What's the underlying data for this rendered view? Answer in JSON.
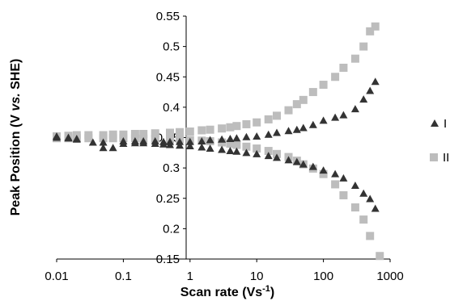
{
  "chart_data": {
    "type": "scatter",
    "xlabel_main": "Scan rate (Vs",
    "xlabel_sup": "-1",
    "xlabel_end": ")",
    "ylabel_pre": "Peak Position (V ",
    "ylabel_it": "vs.",
    "ylabel_post": " SHE)",
    "x_scale": "log",
    "xlim": [
      0.01,
      1000
    ],
    "ylim": [
      0.15,
      0.55
    ],
    "y_ticks": [
      "0.15",
      "0.2",
      "0.25",
      "0.3",
      "0.35",
      "0.4",
      "0.45",
      "0.5",
      "0.55"
    ],
    "x_ticks": [
      "0.01",
      "0.1",
      "1",
      "10",
      "100",
      "1000"
    ],
    "y_tick_values": [
      0.15,
      0.2,
      0.25,
      0.3,
      0.35,
      0.4,
      0.45,
      0.5,
      0.55
    ],
    "x_tick_values": [
      0.01,
      0.1,
      1,
      10,
      100,
      1000
    ],
    "grid": false,
    "legend_position": "right",
    "series": [
      {
        "name": "I",
        "marker": "triangle",
        "color": "#333333",
        "upper": {
          "x": [
            0.01,
            0.015,
            0.02,
            0.035,
            0.05,
            0.1,
            0.15,
            0.2,
            0.3,
            0.4,
            0.5,
            0.7,
            1,
            1.5,
            2,
            3,
            4,
            5,
            7,
            10,
            15,
            20,
            30,
            40,
            50,
            70,
            100,
            150,
            200,
            300,
            400,
            500,
            600
          ],
          "y": [
            0.352,
            0.35,
            0.348,
            0.342,
            0.342,
            0.344,
            0.344,
            0.344,
            0.344,
            0.343,
            0.343,
            0.343,
            0.343,
            0.344,
            0.346,
            0.347,
            0.348,
            0.349,
            0.351,
            0.352,
            0.355,
            0.358,
            0.361,
            0.363,
            0.366,
            0.371,
            0.378,
            0.383,
            0.387,
            0.397,
            0.413,
            0.427,
            0.442
          ]
        },
        "lower": {
          "x": [
            0.01,
            0.015,
            0.02,
            0.05,
            0.07,
            0.1,
            0.15,
            0.2,
            0.3,
            0.4,
            0.5,
            0.7,
            1,
            1.5,
            2,
            3,
            4,
            5,
            7,
            10,
            15,
            20,
            30,
            40,
            50,
            70,
            100,
            150,
            200,
            300,
            400,
            500,
            600
          ],
          "y": [
            0.35,
            0.349,
            0.347,
            0.333,
            0.333,
            0.34,
            0.341,
            0.341,
            0.34,
            0.339,
            0.338,
            0.337,
            0.336,
            0.334,
            0.332,
            0.33,
            0.328,
            0.327,
            0.325,
            0.323,
            0.32,
            0.317,
            0.313,
            0.31,
            0.306,
            0.302,
            0.296,
            0.29,
            0.283,
            0.271,
            0.258,
            0.249,
            0.233
          ]
        }
      },
      {
        "name": "II",
        "marker": "square",
        "color": "#bdbdbd",
        "upper": {
          "x": [
            0.01,
            0.015,
            0.02,
            0.03,
            0.05,
            0.07,
            0.1,
            0.15,
            0.2,
            0.3,
            0.5,
            0.7,
            1,
            1.5,
            2,
            3,
            4,
            5,
            7,
            10,
            15,
            20,
            30,
            40,
            50,
            70,
            100,
            150,
            200,
            300,
            400,
            500,
            600
          ],
          "y": [
            0.352,
            0.353,
            0.354,
            0.354,
            0.354,
            0.355,
            0.355,
            0.356,
            0.356,
            0.357,
            0.358,
            0.359,
            0.36,
            0.362,
            0.363,
            0.365,
            0.367,
            0.369,
            0.372,
            0.375,
            0.38,
            0.386,
            0.395,
            0.405,
            0.412,
            0.425,
            0.437,
            0.45,
            0.465,
            0.48,
            0.5,
            0.525,
            0.533
          ]
        },
        "lower": {
          "x": [
            0.01,
            0.015,
            0.02,
            0.03,
            0.05,
            0.07,
            0.1,
            0.15,
            0.2,
            0.3,
            0.5,
            0.7,
            1,
            1.5,
            2,
            3,
            4,
            5,
            7,
            10,
            15,
            20,
            30,
            40,
            50,
            70,
            100,
            150,
            200,
            300,
            400,
            500,
            700
          ],
          "y": [
            0.349,
            0.349,
            0.349,
            0.349,
            0.349,
            0.349,
            0.349,
            0.349,
            0.348,
            0.348,
            0.347,
            0.347,
            0.346,
            0.345,
            0.344,
            0.342,
            0.34,
            0.338,
            0.335,
            0.332,
            0.328,
            0.323,
            0.318,
            0.312,
            0.306,
            0.299,
            0.29,
            0.273,
            0.255,
            0.235,
            0.215,
            0.188,
            0.155
          ]
        }
      }
    ]
  }
}
